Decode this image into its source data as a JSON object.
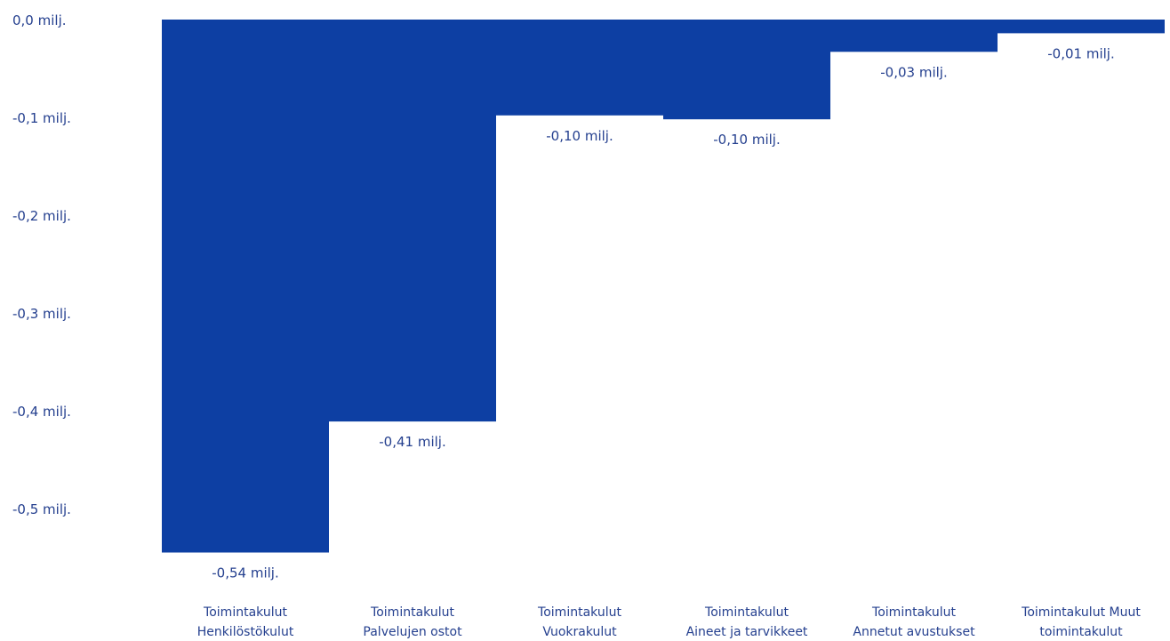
{
  "chart_data": {
    "type": "bar",
    "subtype": "waterfall",
    "title": "",
    "xlabel": "",
    "ylabel": "",
    "ylim": [
      -0.55,
      0.0
    ],
    "yticks": [
      {
        "value": 0.0,
        "label": "0,0 milj."
      },
      {
        "value": -0.1,
        "label": "-0,1 milj."
      },
      {
        "value": -0.2,
        "label": "-0,2 milj."
      },
      {
        "value": -0.3,
        "label": "-0,3 milj."
      },
      {
        "value": -0.4,
        "label": "-0,4 milj."
      },
      {
        "value": -0.5,
        "label": "-0,5 milj."
      }
    ],
    "grid": false,
    "color": "#0d3fa3",
    "categories": [
      [
        "Toimintakulut",
        "Henkilöstökulut"
      ],
      [
        "Toimintakulut",
        "Palvelujen ostot"
      ],
      [
        "Toimintakulut",
        "Vuokrakulut"
      ],
      [
        "Toimintakulut",
        "Aineet ja tarvikkeet"
      ],
      [
        "Toimintakulut",
        "Annetut avustukset"
      ],
      [
        "Toimintakulut Muut",
        "toimintakulut"
      ]
    ],
    "bars": [
      {
        "start": 0.0,
        "end": -0.545,
        "value": -0.54,
        "label": "-0,54 milj."
      },
      {
        "start": -0.0,
        "end": -0.411,
        "value": -0.41,
        "label": "-0,41 milj."
      },
      {
        "start": 0.0,
        "end": -0.098,
        "value": -0.1,
        "label": "-0,10 milj."
      },
      {
        "start": 0.0,
        "end": -0.102,
        "value": -0.1,
        "label": "-0,10 milj."
      },
      {
        "start": 0.0,
        "end": -0.033,
        "value": -0.03,
        "label": "-0,03 milj."
      },
      {
        "start": 0.0,
        "end": -0.014,
        "value": -0.01,
        "label": "-0,01 milj."
      }
    ]
  }
}
